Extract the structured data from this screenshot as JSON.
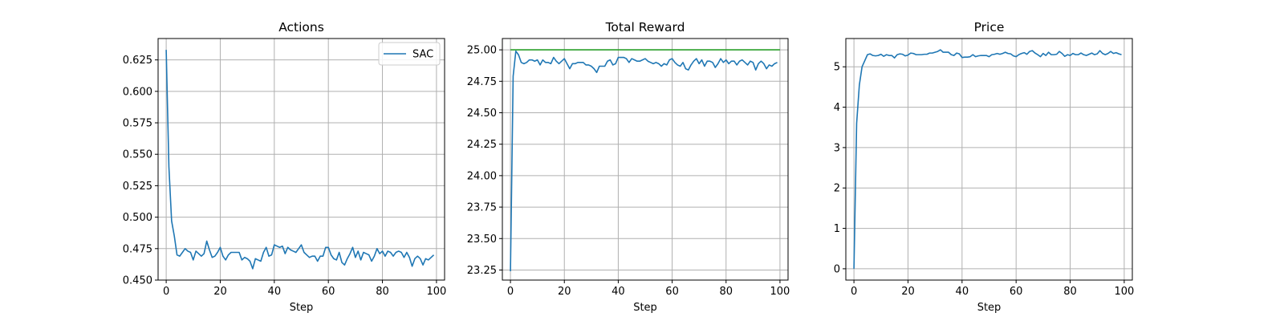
{
  "chart_data": [
    {
      "type": "line",
      "title": "Actions",
      "xlabel": "Step",
      "ylabel": "",
      "xlim": [
        -3,
        103
      ],
      "ylim": [
        0.45,
        0.642
      ],
      "xticks": [
        0,
        20,
        40,
        60,
        80,
        100
      ],
      "yticks": [
        0.45,
        0.475,
        0.5,
        0.525,
        0.55,
        0.575,
        0.6,
        0.625
      ],
      "ytick_labels": [
        "0.450",
        "0.475",
        "0.500",
        "0.525",
        "0.550",
        "0.575",
        "0.600",
        "0.625"
      ],
      "grid": true,
      "legend": "top-right",
      "series": [
        {
          "name": "SAC",
          "color": "#1f77b4",
          "x": [
            0,
            1,
            2,
            3,
            4,
            5,
            6,
            7,
            8,
            9,
            10,
            11,
            12,
            13,
            14,
            15,
            16,
            17,
            18,
            19,
            20,
            21,
            22,
            23,
            24,
            25,
            26,
            27,
            28,
            29,
            30,
            31,
            32,
            33,
            34,
            35,
            36,
            37,
            38,
            39,
            40,
            41,
            42,
            43,
            44,
            45,
            46,
            47,
            48,
            49,
            50,
            51,
            52,
            53,
            54,
            55,
            56,
            57,
            58,
            59,
            60,
            61,
            62,
            63,
            64,
            65,
            66,
            67,
            68,
            69,
            70,
            71,
            72,
            73,
            74,
            75,
            76,
            77,
            78,
            79,
            80,
            81,
            82,
            83,
            84,
            85,
            86,
            87,
            88,
            89,
            90,
            91,
            92,
            93,
            94,
            95,
            96,
            97,
            98,
            99
          ],
          "y": [
            0.633,
            0.54,
            0.497,
            0.485,
            0.47,
            0.469,
            0.472,
            0.475,
            0.473,
            0.472,
            0.466,
            0.473,
            0.471,
            0.469,
            0.471,
            0.481,
            0.474,
            0.468,
            0.469,
            0.472,
            0.476,
            0.469,
            0.466,
            0.47,
            0.472,
            0.472,
            0.472,
            0.472,
            0.466,
            0.468,
            0.467,
            0.465,
            0.459,
            0.467,
            0.466,
            0.465,
            0.472,
            0.476,
            0.469,
            0.47,
            0.478,
            0.477,
            0.476,
            0.477,
            0.471,
            0.476,
            0.474,
            0.473,
            0.472,
            0.475,
            0.478,
            0.472,
            0.47,
            0.468,
            0.469,
            0.469,
            0.465,
            0.469,
            0.469,
            0.476,
            0.476,
            0.47,
            0.467,
            0.466,
            0.472,
            0.464,
            0.462,
            0.467,
            0.471,
            0.476,
            0.468,
            0.473,
            0.466,
            0.472,
            0.471,
            0.47,
            0.465,
            0.469,
            0.475,
            0.471,
            0.473,
            0.469,
            0.473,
            0.472,
            0.469,
            0.472,
            0.473,
            0.472,
            0.468,
            0.472,
            0.468,
            0.461,
            0.467,
            0.469,
            0.467,
            0.462,
            0.467,
            0.466,
            0.468,
            0.47
          ]
        }
      ]
    },
    {
      "type": "line",
      "title": "Total Reward",
      "xlabel": "Step",
      "ylabel": "",
      "xlim": [
        -3,
        103
      ],
      "ylim": [
        23.17,
        25.09
      ],
      "xticks": [
        0,
        20,
        40,
        60,
        80,
        100
      ],
      "yticks": [
        23.25,
        23.5,
        23.75,
        24.0,
        24.25,
        24.5,
        24.75,
        25.0
      ],
      "ytick_labels": [
        "23.25",
        "23.50",
        "23.75",
        "24.00",
        "24.25",
        "24.50",
        "24.75",
        "25.00"
      ],
      "grid": true,
      "series": [
        {
          "color": "#2ca02c",
          "x": [
            0,
            100
          ],
          "y": [
            25.0,
            25.0
          ]
        },
        {
          "color": "#1f77b4",
          "x": [
            0,
            1,
            2,
            3,
            4,
            5,
            6,
            7,
            8,
            9,
            10,
            11,
            12,
            13,
            14,
            15,
            16,
            17,
            18,
            19,
            20,
            21,
            22,
            23,
            24,
            25,
            26,
            27,
            28,
            29,
            30,
            31,
            32,
            33,
            34,
            35,
            36,
            37,
            38,
            39,
            40,
            41,
            42,
            43,
            44,
            45,
            46,
            47,
            48,
            49,
            50,
            51,
            52,
            53,
            54,
            55,
            56,
            57,
            58,
            59,
            60,
            61,
            62,
            63,
            64,
            65,
            66,
            67,
            68,
            69,
            70,
            71,
            72,
            73,
            74,
            75,
            76,
            77,
            78,
            79,
            80,
            81,
            82,
            83,
            84,
            85,
            86,
            87,
            88,
            89,
            90,
            91,
            92,
            93,
            94,
            95,
            96,
            97,
            98,
            99
          ],
          "y": [
            23.24,
            24.79,
            24.99,
            24.96,
            24.9,
            24.89,
            24.9,
            24.92,
            24.92,
            24.91,
            24.92,
            24.88,
            24.92,
            24.9,
            24.9,
            24.89,
            24.94,
            24.91,
            24.89,
            24.91,
            24.93,
            24.89,
            24.85,
            24.89,
            24.89,
            24.9,
            24.9,
            24.9,
            24.88,
            24.88,
            24.87,
            24.85,
            24.82,
            24.87,
            24.87,
            24.87,
            24.91,
            24.92,
            24.88,
            24.89,
            24.94,
            24.94,
            24.94,
            24.93,
            24.9,
            24.93,
            24.92,
            24.91,
            24.91,
            24.92,
            24.93,
            24.91,
            24.9,
            24.89,
            24.9,
            24.89,
            24.87,
            24.89,
            24.88,
            24.92,
            24.93,
            24.9,
            24.88,
            24.87,
            24.9,
            24.85,
            24.84,
            24.88,
            24.91,
            24.93,
            24.89,
            24.92,
            24.87,
            24.91,
            24.91,
            24.9,
            24.86,
            24.89,
            24.93,
            24.9,
            24.92,
            24.89,
            24.91,
            24.91,
            24.88,
            24.91,
            24.92,
            24.9,
            24.88,
            24.91,
            24.9,
            24.84,
            24.89,
            24.91,
            24.89,
            24.85,
            24.88,
            24.87,
            24.89,
            24.9
          ]
        }
      ]
    },
    {
      "type": "line",
      "title": "Price",
      "xlabel": "Step",
      "ylabel": "",
      "xlim": [
        -3,
        103
      ],
      "ylim": [
        -0.28,
        5.7
      ],
      "xticks": [
        0,
        20,
        40,
        60,
        80,
        100
      ],
      "yticks": [
        0,
        1,
        2,
        3,
        4,
        5
      ],
      "ytick_labels": [
        "0",
        "1",
        "2",
        "3",
        "4",
        "5"
      ],
      "grid": true,
      "series": [
        {
          "color": "#1f77b4",
          "x": [
            0,
            1,
            2,
            3,
            4,
            5,
            6,
            7,
            8,
            9,
            10,
            11,
            12,
            13,
            14,
            15,
            16,
            17,
            18,
            19,
            20,
            21,
            22,
            23,
            24,
            25,
            26,
            27,
            28,
            29,
            30,
            31,
            32,
            33,
            34,
            35,
            36,
            37,
            38,
            39,
            40,
            41,
            42,
            43,
            44,
            45,
            46,
            47,
            48,
            49,
            50,
            51,
            52,
            53,
            54,
            55,
            56,
            57,
            58,
            59,
            60,
            61,
            62,
            63,
            64,
            65,
            66,
            67,
            68,
            69,
            70,
            71,
            72,
            73,
            74,
            75,
            76,
            77,
            78,
            79,
            80,
            81,
            82,
            83,
            84,
            85,
            86,
            87,
            88,
            89,
            90,
            91,
            92,
            93,
            94,
            95,
            96,
            97,
            98,
            99
          ],
          "y": [
            0.0,
            3.6,
            4.55,
            5.0,
            5.15,
            5.3,
            5.32,
            5.28,
            5.27,
            5.28,
            5.31,
            5.26,
            5.3,
            5.28,
            5.28,
            5.22,
            5.3,
            5.32,
            5.31,
            5.27,
            5.29,
            5.34,
            5.33,
            5.3,
            5.3,
            5.3,
            5.31,
            5.31,
            5.34,
            5.34,
            5.36,
            5.38,
            5.42,
            5.36,
            5.36,
            5.36,
            5.3,
            5.28,
            5.34,
            5.32,
            5.23,
            5.24,
            5.24,
            5.25,
            5.3,
            5.25,
            5.27,
            5.28,
            5.28,
            5.28,
            5.25,
            5.3,
            5.31,
            5.33,
            5.31,
            5.33,
            5.36,
            5.33,
            5.32,
            5.27,
            5.25,
            5.3,
            5.33,
            5.35,
            5.31,
            5.38,
            5.4,
            5.34,
            5.3,
            5.25,
            5.33,
            5.28,
            5.36,
            5.3,
            5.3,
            5.31,
            5.38,
            5.33,
            5.26,
            5.3,
            5.28,
            5.33,
            5.3,
            5.3,
            5.34,
            5.3,
            5.28,
            5.31,
            5.34,
            5.3,
            5.32,
            5.4,
            5.33,
            5.3,
            5.33,
            5.38,
            5.33,
            5.35,
            5.32,
            5.3
          ]
        }
      ]
    }
  ]
}
